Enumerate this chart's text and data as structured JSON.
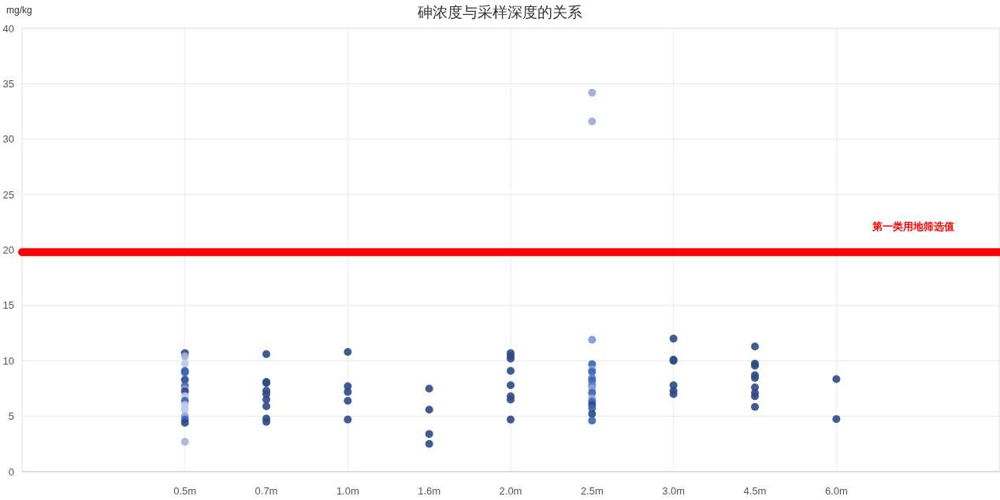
{
  "chart_data": {
    "type": "scatter",
    "title": "砷浓度与采样深度的关系",
    "ylabel": "mg/kg",
    "categories": [
      null,
      null,
      "0.5m",
      "0.7m",
      "1.0m",
      "1.6m",
      "2.0m",
      "2.5m",
      "3.0m",
      "4.5m",
      "6.0m",
      null,
      null
    ],
    "ylim": [
      0,
      40
    ],
    "yticks": [
      0,
      5,
      10,
      15,
      20,
      25,
      30,
      35,
      40
    ],
    "grid": true,
    "marker": "circle",
    "ref_lines": [
      {
        "axis": "y",
        "value": 19.8,
        "label": "第一类用地筛选值",
        "color": "#ff0000"
      }
    ],
    "series": [
      {
        "x": [
          "0.5m",
          "0.5m",
          "0.5m",
          "0.5m",
          "0.5m",
          "0.5m",
          "0.5m",
          "0.5m",
          "0.5m",
          "0.5m",
          "0.5m",
          "0.5m",
          "0.5m",
          "0.5m",
          "0.5m",
          "0.5m",
          "0.5m",
          "0.7m",
          "0.7m",
          "0.7m",
          "0.7m",
          "0.7m",
          "0.7m",
          "0.7m",
          "0.7m",
          "0.7m",
          "1.0m",
          "1.0m",
          "1.0m",
          "1.0m",
          "1.0m",
          "1.6m",
          "1.6m",
          "1.6m",
          "1.6m",
          "2.0m",
          "2.0m",
          "2.0m",
          "2.0m",
          "2.0m",
          "2.0m",
          "2.0m",
          "2.0m",
          "2.5m",
          "2.5m",
          "2.5m",
          "2.5m",
          "2.5m",
          "2.5m",
          "2.5m",
          "2.5m",
          "2.5m",
          "2.5m",
          "2.5m",
          "2.5m",
          "2.5m",
          "2.5m",
          "2.5m",
          "2.5m",
          "2.5m",
          "3.0m",
          "3.0m",
          "3.0m",
          "3.0m",
          "3.0m",
          "3.0m",
          "4.5m",
          "4.5m",
          "4.5m",
          "4.5m",
          "4.5m",
          "4.5m",
          "4.5m",
          "4.5m",
          "4.5m",
          "6.0m",
          "6.0m"
        ],
        "values": [
          10.7,
          10.4,
          9.75,
          9.1,
          8.95,
          8.3,
          7.75,
          7.45,
          7.25,
          6.8,
          6.4,
          6.0,
          5.6,
          5.0,
          4.7,
          4.4,
          2.7,
          10.6,
          8.1,
          8.0,
          7.3,
          7.0,
          6.5,
          5.9,
          4.8,
          4.5,
          10.8,
          7.7,
          7.2,
          6.4,
          4.7,
          7.5,
          5.6,
          3.4,
          2.5,
          10.7,
          10.45,
          10.2,
          9.1,
          7.8,
          6.8,
          6.5,
          4.7,
          34.2,
          31.6,
          11.9,
          9.7,
          9.2,
          9.0,
          8.45,
          8.2,
          7.8,
          7.5,
          7.1,
          6.6,
          6.3,
          6.0,
          5.7,
          5.2,
          4.6,
          12.0,
          10.1,
          10.0,
          7.8,
          7.3,
          7.0,
          11.3,
          9.75,
          9.55,
          8.7,
          8.45,
          7.6,
          7.1,
          6.8,
          5.85,
          8.35,
          4.75
        ],
        "colors": [
          "#2e4a87",
          "#a3b1dd",
          "#c0cae8",
          "#3a64b5",
          "#3a64b5",
          "#2e4a87",
          "#3a64b5",
          "#8fa2d6",
          "#2e4a87",
          "#c0cae8",
          "#3a64b5",
          "#c0cae8",
          "#c0cae8",
          "#8fa2d6",
          "#3a64b5",
          "#2e4a87",
          "#a3b1dd",
          "#2e4a87",
          "#2e4a87",
          "#2e4a87",
          "#2e4a87",
          "#2e4a87",
          "#2e4a87",
          "#2e4a87",
          "#2e4a87",
          "#2e4a87",
          "#2e4a87",
          "#2e4a87",
          "#2e4a87",
          "#2e4a87",
          "#2e4a87",
          "#2e4a87",
          "#2e4a87",
          "#2e4a87",
          "#2e4a87",
          "#2e4a87",
          "#2e4a87",
          "#2e4a87",
          "#2e4a87",
          "#2e4a87",
          "#2e4a87",
          "#2e4a87",
          "#2e4a87",
          "#9aaad8",
          "#9aaad8",
          "#7f96d0",
          "#3a64b5",
          "#8fa2d6",
          "#3a64b5",
          "#5b7cc6",
          "#3a64b5",
          "#5b7cc6",
          "#8fa2d6",
          "#3a64b5",
          "#8fa2d6",
          "#3a64b5",
          "#2e4a87",
          "#3a64b5",
          "#2e4a87",
          "#3a64b5",
          "#2e4a87",
          "#2e4a87",
          "#2e4a87",
          "#2e4a87",
          "#2e4a87",
          "#2e4a87",
          "#2e4a87",
          "#2e4a87",
          "#2e4a87",
          "#2e4a87",
          "#2e4a87",
          "#2e4a87",
          "#2e4a87",
          "#2e4a87",
          "#2e4a87",
          "#2e4a87",
          "#2e4a87"
        ]
      }
    ]
  }
}
